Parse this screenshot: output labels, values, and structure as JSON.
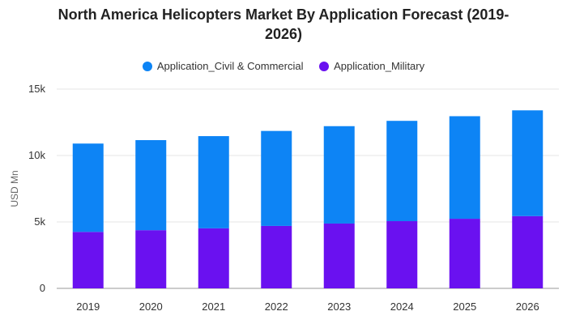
{
  "chart_data": {
    "type": "bar",
    "stacked": true,
    "title_line1": "North America Helicopters Market By Application Forecast (2019-",
    "title_line2": "2026)",
    "ylabel": "USD Mn",
    "xlabel": "",
    "ylim": [
      0,
      15000
    ],
    "yticks": [
      0,
      5000,
      10000,
      15000
    ],
    "ytick_labels": [
      "0",
      "5k",
      "10k",
      "15k"
    ],
    "grid": true,
    "legend_position": "top-center",
    "categories": [
      "2019",
      "2020",
      "2021",
      "2022",
      "2023",
      "2024",
      "2025",
      "2026"
    ],
    "series": [
      {
        "name": "Application_Military",
        "color": "#6a11f0",
        "values": [
          4250,
          4380,
          4520,
          4700,
          4880,
          5060,
          5240,
          5440
        ]
      },
      {
        "name": "Application_Civil & Commercial",
        "color": "#0d84f5",
        "values": [
          6650,
          6780,
          6940,
          7150,
          7330,
          7550,
          7720,
          7960
        ]
      }
    ],
    "legend_order": [
      1,
      0
    ]
  }
}
